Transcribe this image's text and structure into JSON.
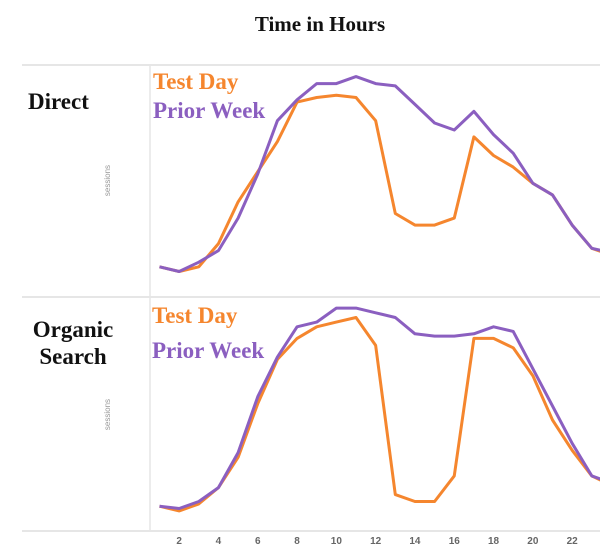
{
  "title": "Time in Hours",
  "colors": {
    "test_day": "#f5862e",
    "prior_week": "#8b5fc0"
  },
  "chart_data": [
    {
      "type": "line",
      "panel_label": "Direct",
      "ylabel": "sessions",
      "xlabel": "",
      "x": [
        1,
        2,
        3,
        4,
        5,
        6,
        7,
        8,
        9,
        10,
        11,
        12,
        13,
        14,
        15,
        16,
        17,
        18,
        19,
        20,
        21,
        22,
        23,
        24
      ],
      "grid": false,
      "legend": "top-left",
      "series": [
        {
          "name": "Test Day",
          "values": [
            13,
            11,
            13,
            23,
            41,
            54,
            67,
            84,
            86,
            87,
            86,
            76,
            36,
            31,
            31,
            34,
            69,
            61,
            56,
            49,
            44,
            31,
            21,
            18
          ]
        },
        {
          "name": "Prior Week",
          "values": [
            13,
            11,
            15,
            20,
            34,
            53,
            76,
            85,
            92,
            92,
            95,
            92,
            91,
            83,
            75,
            72,
            80,
            70,
            62,
            49,
            44,
            31,
            21,
            19
          ]
        }
      ]
    },
    {
      "type": "line",
      "panel_label": "Organic Search",
      "ylabel": "sessions",
      "xlabel": "",
      "x": [
        1,
        2,
        3,
        4,
        5,
        6,
        7,
        8,
        9,
        10,
        11,
        12,
        13,
        14,
        15,
        16,
        17,
        18,
        19,
        20,
        21,
        22,
        23,
        24
      ],
      "xticks": [
        "2",
        "4",
        "6",
        "8",
        "10",
        "12",
        "14",
        "16",
        "18",
        "20",
        "22"
      ],
      "grid": false,
      "legend": "top-left",
      "series": [
        {
          "name": "Test Day",
          "values": [
            10,
            8,
            11,
            18,
            31,
            54,
            73,
            82,
            87,
            89,
            91,
            79,
            15,
            12,
            12,
            23,
            82,
            82,
            78,
            66,
            47,
            34,
            23,
            19
          ]
        },
        {
          "name": "Prior Week",
          "values": [
            10,
            9,
            12,
            18,
            33,
            57,
            74,
            87,
            89,
            95,
            95,
            93,
            91,
            84,
            83,
            83,
            84,
            87,
            85,
            69,
            53,
            37,
            23,
            20
          ]
        }
      ]
    }
  ]
}
